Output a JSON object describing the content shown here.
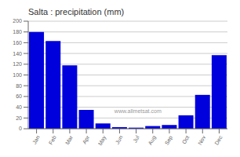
{
  "chart_data": {
    "type": "bar",
    "title": "Salta : precipitation (mm)",
    "categories": [
      "Jan",
      "Feb",
      "Mar",
      "Apr",
      "May",
      "Jun",
      "Jul",
      "Aug",
      "Sep",
      "Oct",
      "Nov",
      "Dec"
    ],
    "values": [
      180,
      163,
      118,
      35,
      10,
      3,
      2,
      5,
      7,
      25,
      63,
      137
    ],
    "color": "#0000dd",
    "ylim": [
      0,
      200
    ],
    "yticks": [
      0,
      20,
      40,
      60,
      80,
      100,
      120,
      140,
      160,
      180,
      200
    ],
    "grid": true,
    "annotations": [
      "www.allmetsat.com"
    ]
  }
}
